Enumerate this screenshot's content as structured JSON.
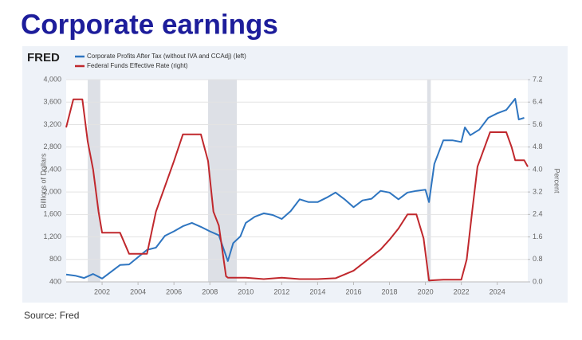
{
  "chart_data": {
    "type": "line",
    "title": "Corporate earnings",
    "logo": "FRED",
    "source": "Source: Fred",
    "y_label": "Billions of Dollars",
    "y2_label": "Percent",
    "xlim": [
      2000,
      2025.7
    ],
    "xticks": [
      2002,
      2004,
      2006,
      2008,
      2010,
      2012,
      2014,
      2016,
      2018,
      2020,
      2022,
      2024
    ],
    "ylim": [
      400,
      4000
    ],
    "yticks": [
      400,
      800,
      {
        "value": 1200,
        "label": "1,200"
      },
      {
        "value": 1600,
        "label": "1,600"
      },
      {
        "value": 2000,
        "label": "2,000"
      },
      {
        "value": 2400,
        "label": "2,400"
      },
      {
        "value": 2800,
        "label": "2,800"
      },
      {
        "value": 3200,
        "label": "3,200"
      },
      {
        "value": 3600,
        "label": "3,600"
      },
      {
        "value": 4000,
        "label": "4,000"
      }
    ],
    "y2lim": [
      0,
      7.2
    ],
    "y2ticks": [
      {
        "value": 0,
        "label": "0.0"
      },
      0.8,
      1.6,
      2.4,
      3.2,
      {
        "value": 4,
        "label": "4.0"
      },
      4.8,
      5.6,
      6.4,
      7.2
    ],
    "grid": true,
    "shaded_periods": [
      [
        2001.2,
        2001.9
      ],
      [
        2007.9,
        2009.5
      ],
      [
        2020.1,
        2020.3
      ]
    ],
    "shade_color": "#dde0e6",
    "series": [
      {
        "name": "Corporate Profits After Tax (without IVA and CCAdj) (left)",
        "color": "#2e75c0",
        "axis": "y",
        "x": [
          2000,
          2000.5,
          2001,
          2001.5,
          2002,
          2003,
          2003.5,
          2004,
          2004.5,
          2005,
          2005.5,
          2006,
          2006.5,
          2007,
          2007.5,
          2008,
          2008.5,
          2009,
          2009.3,
          2009.7,
          2010,
          2010.5,
          2011,
          2011.5,
          2012,
          2012.5,
          2013,
          2013.5,
          2014,
          2014.5,
          2015,
          2015.5,
          2016,
          2016.5,
          2017,
          2017.5,
          2018,
          2018.5,
          2019,
          2019.5,
          2020,
          2020.2,
          2020.5,
          2021,
          2021.5,
          2022,
          2022.2,
          2022.5,
          2023,
          2023.5,
          2024,
          2024.5,
          2025,
          2025.2,
          2025.5
        ],
        "values": [
          530,
          510,
          470,
          540,
          460,
          700,
          710,
          840,
          970,
          1010,
          1220,
          1300,
          1390,
          1450,
          1380,
          1300,
          1230,
          770,
          1090,
          1210,
          1450,
          1560,
          1620,
          1590,
          1520,
          1660,
          1870,
          1820,
          1820,
          1900,
          1990,
          1870,
          1730,
          1850,
          1880,
          2020,
          1990,
          1870,
          1990,
          2020,
          2040,
          1820,
          2500,
          2920,
          2920,
          2890,
          3150,
          3010,
          3110,
          3320,
          3400,
          3460,
          3660,
          3290,
          3320
        ]
      },
      {
        "name": "Federal Funds Effective Rate (right)",
        "color": "#c0282d",
        "axis": "y2",
        "x": [
          2000,
          2000.4,
          2000.9,
          2001.2,
          2001.5,
          2001.8,
          2002,
          2003,
          2003.5,
          2004.5,
          2005,
          2006,
          2006.5,
          2007.5,
          2007.9,
          2008.2,
          2008.5,
          2008.9,
          2009,
          2010,
          2011,
          2012,
          2013,
          2014,
          2015,
          2016,
          2017,
          2017.5,
          2018,
          2018.5,
          2019,
          2019.5,
          2019.9,
          2020.2,
          2021,
          2022,
          2022.3,
          2022.6,
          2022.9,
          2023.3,
          2023.6,
          2024.5,
          2024.8,
          2025,
          2025.5,
          2025.7
        ],
        "values": [
          5.5,
          6.5,
          6.5,
          5.0,
          4.0,
          2.5,
          1.75,
          1.75,
          1.0,
          1.0,
          2.5,
          4.3,
          5.25,
          5.25,
          4.3,
          2.5,
          2.0,
          0.2,
          0.15,
          0.15,
          0.1,
          0.15,
          0.1,
          0.1,
          0.13,
          0.4,
          0.9,
          1.15,
          1.5,
          1.9,
          2.4,
          2.4,
          1.55,
          0.05,
          0.08,
          0.08,
          0.8,
          2.5,
          4.1,
          4.8,
          5.33,
          5.33,
          4.8,
          4.33,
          4.33,
          4.1
        ]
      }
    ]
  }
}
